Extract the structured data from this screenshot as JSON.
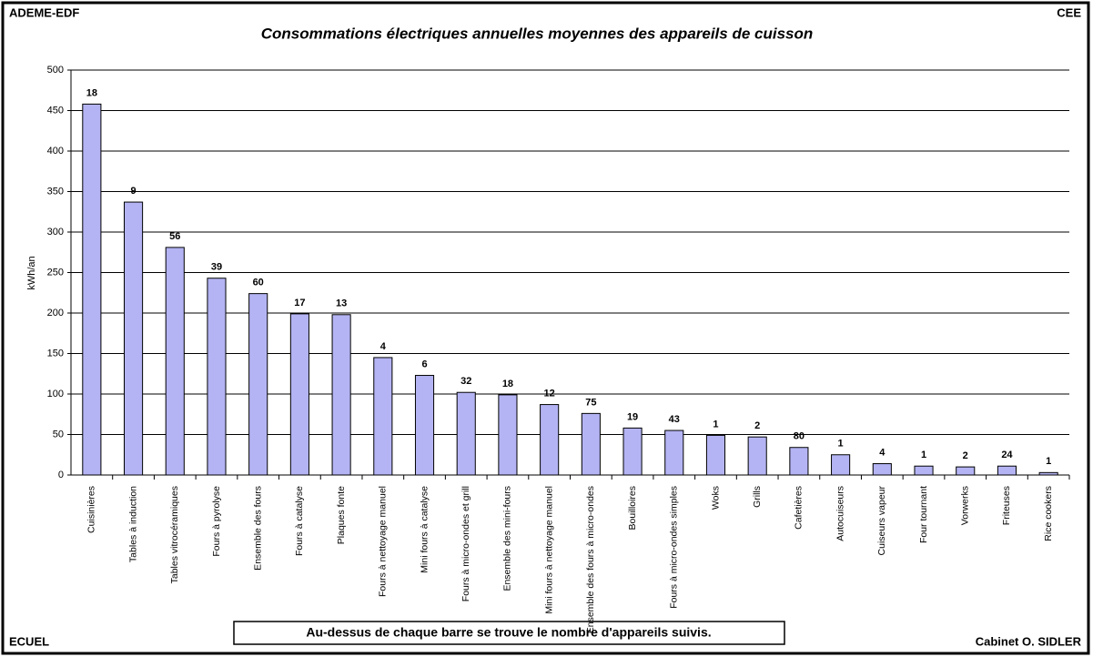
{
  "chart_data": {
    "type": "bar",
    "title": "Consommations électriques annuelles moyennes des appareils de cuisson",
    "corner_labels": {
      "top_left": "ADEME-EDF",
      "top_right": "CEE",
      "bottom_left": "ECUEL",
      "bottom_right": "Cabinet O. SIDLER"
    },
    "footnote": "Au-dessus de chaque barre se trouve le nombre d'appareils suivis.",
    "y_label": "kWh/an",
    "categories": [
      "Cuisinières",
      "Tables à induction",
      "Tables vitrocéramiques",
      "Fours à pyrolyse",
      "Ensemble des fours",
      "Fours à catalyse",
      "Plaques fonte",
      "Fours à nettoyage manuel",
      "Mini fours à catalyse",
      "Fours à micro-ondes et grill",
      "Ensemble des mini-fours",
      "Mini fours à nettoyage manuel",
      "Ensemble des fours à micro-ondes",
      "Bouilloires",
      "Fours à micro-ondes simples",
      "Woks",
      "Grills",
      "Cafetières",
      "Autocuiseurs",
      "Cuiseurs vapeur",
      "Four tournant",
      "Vorwerks",
      "Friteuses",
      "Rice cookers"
    ],
    "values": [
      458,
      337,
      281,
      243,
      224,
      199,
      198,
      145,
      123,
      102,
      99,
      87,
      76,
      58,
      55,
      49,
      47,
      34,
      25,
      14,
      11,
      10,
      11,
      3
    ],
    "appliance_counts": [
      18,
      9,
      56,
      39,
      60,
      17,
      13,
      4,
      6,
      32,
      18,
      12,
      75,
      19,
      43,
      1,
      2,
      80,
      1,
      4,
      1,
      2,
      24,
      1
    ],
    "color": "#b4b4f4",
    "ylim": [
      0,
      500
    ],
    "yticks": [
      0,
      50,
      100,
      150,
      200,
      250,
      300,
      350,
      400,
      450,
      500
    ],
    "grid": true
  }
}
